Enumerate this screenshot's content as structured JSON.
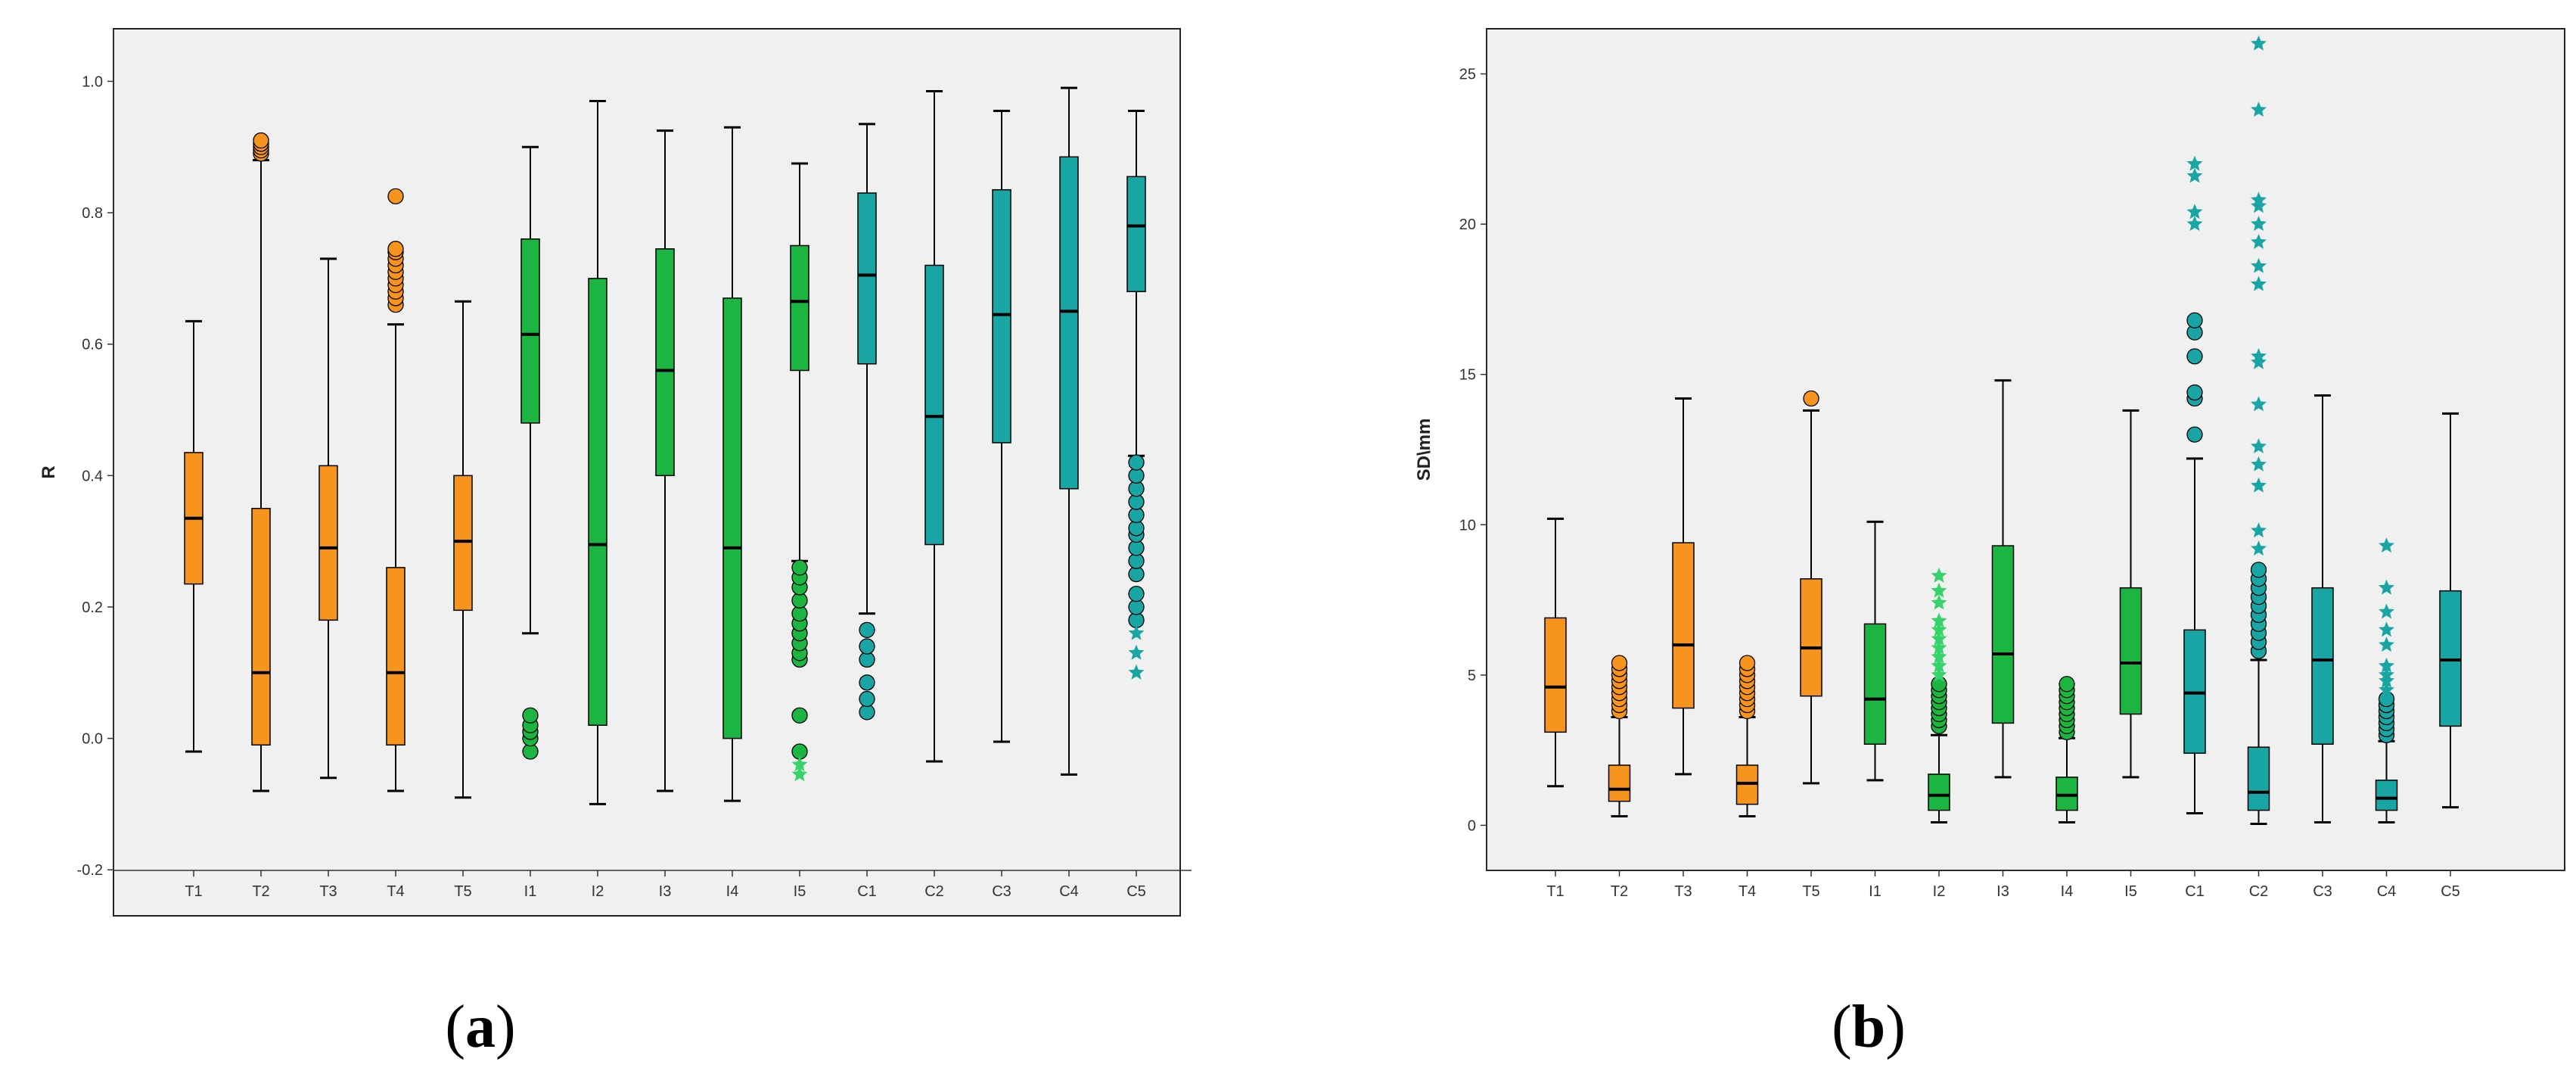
{
  "chart_data": [
    {
      "type": "box",
      "panel_label": "a",
      "ylabel": "R",
      "ylim": [
        -0.27,
        1.08
      ],
      "yticks": [
        -0.2,
        0.0,
        0.2,
        0.4,
        0.6,
        0.8,
        1.0
      ],
      "ytick_labels": [
        "-0.2",
        "0.0",
        "0.2",
        "0.4",
        "0.6",
        "0.8",
        "1.0"
      ],
      "grid": false,
      "groups": [
        {
          "label": "T1",
          "color": "#f7941d",
          "whisker_low": -0.02,
          "q1": 0.235,
          "median": 0.335,
          "q3": 0.435,
          "whisker_high": 0.635,
          "outliers": [],
          "extremes": []
        },
        {
          "label": "T2",
          "color": "#f7941d",
          "whisker_low": -0.08,
          "q1": -0.01,
          "median": 0.1,
          "q3": 0.35,
          "whisker_high": 0.88,
          "outliers": [
            0.89,
            0.895,
            0.9,
            0.905,
            0.91
          ],
          "extremes": []
        },
        {
          "label": "T3",
          "color": "#f7941d",
          "whisker_low": -0.06,
          "q1": 0.18,
          "median": 0.29,
          "q3": 0.415,
          "whisker_high": 0.73,
          "outliers": [],
          "extremes": []
        },
        {
          "label": "T4",
          "color": "#f7941d",
          "whisker_low": -0.08,
          "q1": -0.01,
          "median": 0.1,
          "q3": 0.26,
          "whisker_high": 0.63,
          "outliers": [
            0.66,
            0.67,
            0.68,
            0.69,
            0.7,
            0.71,
            0.72,
            0.73,
            0.74,
            0.745,
            0.825
          ],
          "extremes": []
        },
        {
          "label": "T5",
          "color": "#f7941d",
          "whisker_low": -0.09,
          "q1": 0.195,
          "median": 0.3,
          "q3": 0.4,
          "whisker_high": 0.665,
          "outliers": [],
          "extremes": []
        },
        {
          "label": "I1",
          "color": "#1db541",
          "whisker_low": 0.16,
          "q1": 0.48,
          "median": 0.615,
          "q3": 0.76,
          "whisker_high": 0.9,
          "outliers": [
            -0.02,
            0.0,
            0.01,
            0.02,
            0.035
          ],
          "extremes": []
        },
        {
          "label": "I2",
          "color": "#1db541",
          "whisker_low": -0.1,
          "q1": 0.02,
          "median": 0.295,
          "q3": 0.7,
          "whisker_high": 0.97,
          "outliers": [],
          "extremes": []
        },
        {
          "label": "I3",
          "color": "#1db541",
          "whisker_low": -0.08,
          "q1": 0.4,
          "median": 0.56,
          "q3": 0.745,
          "whisker_high": 0.925,
          "outliers": [],
          "extremes": []
        },
        {
          "label": "I4",
          "color": "#1db541",
          "whisker_low": -0.095,
          "q1": 0.0,
          "median": 0.29,
          "q3": 0.67,
          "whisker_high": 0.93,
          "outliers": [],
          "extremes": []
        },
        {
          "label": "I5",
          "color": "#1db541",
          "whisker_low": 0.27,
          "q1": 0.56,
          "median": 0.665,
          "q3": 0.75,
          "whisker_high": 0.875,
          "outliers": [
            -0.02,
            0.035,
            0.12,
            0.13,
            0.145,
            0.16,
            0.175,
            0.19,
            0.21,
            0.23,
            0.245,
            0.26
          ],
          "extremes": [
            -0.04,
            -0.055
          ]
        },
        {
          "label": "C1",
          "color": "#1aa5a5",
          "whisker_low": 0.19,
          "q1": 0.57,
          "median": 0.705,
          "q3": 0.83,
          "whisker_high": 0.935,
          "outliers": [
            0.04,
            0.06,
            0.085,
            0.12,
            0.14,
            0.165
          ],
          "extremes": []
        },
        {
          "label": "C2",
          "color": "#1aa5a5",
          "whisker_low": -0.035,
          "q1": 0.295,
          "median": 0.49,
          "q3": 0.72,
          "whisker_high": 0.985,
          "outliers": [],
          "extremes": []
        },
        {
          "label": "C3",
          "color": "#1aa5a5",
          "whisker_low": -0.005,
          "q1": 0.45,
          "median": 0.645,
          "q3": 0.835,
          "whisker_high": 0.955,
          "outliers": [],
          "extremes": []
        },
        {
          "label": "C4",
          "color": "#1aa5a5",
          "whisker_low": -0.055,
          "q1": 0.38,
          "median": 0.65,
          "q3": 0.885,
          "whisker_high": 0.99,
          "outliers": [],
          "extremes": []
        },
        {
          "label": "C5",
          "color": "#1aa5a5",
          "whisker_low": 0.43,
          "q1": 0.68,
          "median": 0.78,
          "q3": 0.855,
          "whisker_high": 0.955,
          "outliers": [
            0.18,
            0.2,
            0.22,
            0.25,
            0.27,
            0.29,
            0.31,
            0.32,
            0.34,
            0.36,
            0.38,
            0.4,
            0.42
          ],
          "extremes": [
            0.1,
            0.13,
            0.16
          ]
        }
      ]
    },
    {
      "type": "box",
      "panel_label": "b",
      "ylabel": "SD\\mm",
      "ylim": [
        -1.5,
        26.5
      ],
      "yticks": [
        0,
        5,
        10,
        15,
        20,
        25
      ],
      "ytick_labels": [
        "0",
        "5",
        "10",
        "15",
        "20",
        "25"
      ],
      "grid": false,
      "groups": [
        {
          "label": "T1",
          "color": "#f7941d",
          "whisker_low": 1.3,
          "q1": 3.1,
          "median": 4.6,
          "q3": 6.9,
          "whisker_high": 10.2,
          "outliers": [],
          "extremes": []
        },
        {
          "label": "T2",
          "color": "#f7941d",
          "whisker_low": 0.3,
          "q1": 0.8,
          "median": 1.2,
          "q3": 2.0,
          "whisker_high": 3.6,
          "outliers": [
            3.8,
            4.0,
            4.2,
            4.4,
            4.6,
            4.8,
            5.0,
            5.2,
            5.4
          ],
          "extremes": []
        },
        {
          "label": "T3",
          "color": "#f7941d",
          "whisker_low": 1.7,
          "q1": 3.9,
          "median": 6.0,
          "q3": 9.4,
          "whisker_high": 14.2,
          "outliers": [],
          "extremes": []
        },
        {
          "label": "T4",
          "color": "#f7941d",
          "whisker_low": 0.3,
          "q1": 0.7,
          "median": 1.4,
          "q3": 2.0,
          "whisker_high": 3.6,
          "outliers": [
            3.8,
            4.0,
            4.2,
            4.4,
            4.6,
            4.8,
            5.0,
            5.2,
            5.4
          ],
          "extremes": []
        },
        {
          "label": "T5",
          "color": "#f7941d",
          "whisker_low": 1.4,
          "q1": 4.3,
          "median": 5.9,
          "q3": 8.2,
          "whisker_high": 13.8,
          "outliers": [
            14.2
          ],
          "extremes": []
        },
        {
          "label": "I1",
          "color": "#1db541",
          "whisker_low": 1.5,
          "q1": 2.7,
          "median": 4.2,
          "q3": 6.7,
          "whisker_high": 10.1,
          "outliers": [],
          "extremes": []
        },
        {
          "label": "I2",
          "color": "#1db541",
          "whisker_low": 0.1,
          "q1": 0.5,
          "median": 1.0,
          "q3": 1.7,
          "whisker_high": 3.0,
          "outliers": [
            3.3,
            3.5,
            3.7,
            3.9,
            4.1,
            4.3,
            4.5,
            4.7
          ],
          "extremes": [
            5.0,
            5.3,
            5.6,
            5.9,
            6.2,
            6.5,
            6.8,
            7.4,
            7.8,
            8.3
          ]
        },
        {
          "label": "I3",
          "color": "#1db541",
          "whisker_low": 1.6,
          "q1": 3.4,
          "median": 5.7,
          "q3": 9.3,
          "whisker_high": 14.8,
          "outliers": [],
          "extremes": []
        },
        {
          "label": "I4",
          "color": "#1db541",
          "whisker_low": 0.1,
          "q1": 0.5,
          "median": 1.0,
          "q3": 1.6,
          "whisker_high": 2.9,
          "outliers": [
            3.1,
            3.3,
            3.5,
            3.7,
            3.9,
            4.1,
            4.3,
            4.5,
            4.7
          ],
          "extremes": []
        },
        {
          "label": "I5",
          "color": "#1db541",
          "whisker_low": 1.6,
          "q1": 3.7,
          "median": 5.4,
          "q3": 7.9,
          "whisker_high": 13.8,
          "outliers": [],
          "extremes": []
        },
        {
          "label": "C1",
          "color": "#1aa5a5",
          "whisker_low": 0.4,
          "q1": 2.4,
          "median": 4.4,
          "q3": 6.5,
          "whisker_high": 12.2,
          "outliers": [
            13.0,
            14.2,
            14.4,
            15.6,
            16.4,
            16.8
          ],
          "extremes": [
            20.0,
            20.4,
            21.6,
            22.0
          ]
        },
        {
          "label": "C2",
          "color": "#1aa5a5",
          "whisker_low": 0.05,
          "q1": 0.5,
          "median": 1.1,
          "q3": 2.6,
          "whisker_high": 5.5,
          "outliers": [
            5.8,
            6.1,
            6.4,
            6.7,
            7.0,
            7.3,
            7.6,
            7.9,
            8.2,
            8.5
          ],
          "extremes": [
            9.2,
            9.8,
            11.3,
            12.0,
            12.6,
            14.0,
            15.4,
            15.6,
            18.0,
            18.6,
            19.4,
            20.0,
            20.6,
            20.8,
            23.8,
            26.0
          ]
        },
        {
          "label": "C3",
          "color": "#1aa5a5",
          "whisker_low": 0.1,
          "q1": 2.7,
          "median": 5.5,
          "q3": 7.9,
          "whisker_high": 14.3,
          "outliers": [],
          "extremes": []
        },
        {
          "label": "C4",
          "color": "#1aa5a5",
          "whisker_low": 0.1,
          "q1": 0.5,
          "median": 0.9,
          "q3": 1.5,
          "whisker_high": 2.8,
          "outliers": [
            3.0,
            3.2,
            3.4,
            3.6,
            3.8,
            4.0,
            4.2
          ],
          "extremes": [
            4.5,
            4.8,
            5.0,
            5.3,
            6.0,
            6.5,
            7.1,
            7.9,
            9.3
          ]
        },
        {
          "label": "C5",
          "color": "#1aa5a5",
          "whisker_low": 0.6,
          "q1": 3.3,
          "median": 5.5,
          "q3": 7.8,
          "whisker_high": 13.7,
          "outliers": [],
          "extremes": []
        }
      ]
    }
  ]
}
